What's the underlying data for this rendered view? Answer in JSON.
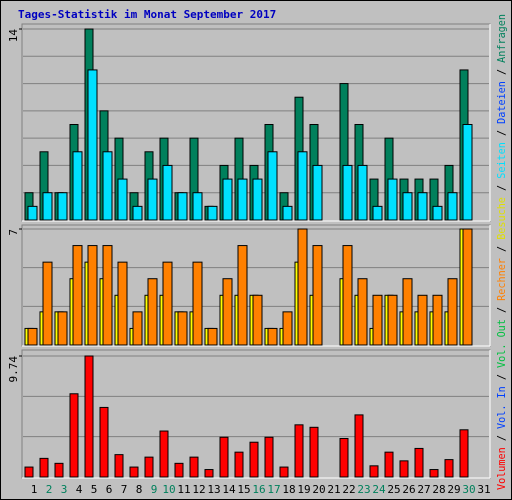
{
  "chart_data": [
    {
      "type": "bar",
      "title": "Tages-Statistik im Monat September 2017",
      "title_color": "#0000c0",
      "ylim": [
        0,
        14
      ],
      "yticks": [
        14
      ],
      "series": [
        {
          "name": "Anfragen",
          "color": "#00805c",
          "values": [
            2,
            5,
            2,
            7,
            14,
            8,
            6,
            2,
            5,
            6,
            2,
            6,
            1,
            4,
            6,
            4,
            7,
            2,
            9,
            7,
            0,
            10,
            7,
            3,
            6,
            3,
            3,
            3,
            4,
            11,
            0
          ]
        },
        {
          "name": "Seiten",
          "color": "#00e0ff",
          "values": [
            1,
            2,
            2,
            5,
            11,
            5,
            3,
            1,
            3,
            4,
            2,
            2,
            1,
            3,
            3,
            3,
            5,
            1,
            5,
            4,
            0,
            4,
            4,
            1,
            3,
            2,
            2,
            1,
            2,
            7,
            0
          ]
        }
      ]
    },
    {
      "type": "bar",
      "ylim": [
        0,
        7
      ],
      "yticks": [
        7
      ],
      "series": [
        {
          "name": "Besuche",
          "color": "#ffff00",
          "values": [
            1,
            2,
            2,
            4,
            5,
            4,
            3,
            1,
            3,
            3,
            2,
            2,
            1,
            3,
            3,
            3,
            1,
            1,
            5,
            3,
            0,
            4,
            3,
            1,
            3,
            2,
            2,
            2,
            2,
            7,
            0
          ]
        },
        {
          "name": "Rechner",
          "color": "#ff8000",
          "values": [
            1,
            5,
            2,
            6,
            6,
            6,
            5,
            2,
            4,
            5,
            2,
            5,
            1,
            4,
            6,
            3,
            1,
            2,
            7,
            6,
            0,
            6,
            4,
            3,
            3,
            4,
            3,
            3,
            4,
            7,
            0
          ]
        }
      ]
    },
    {
      "type": "bar",
      "ylim": [
        0,
        9.74
      ],
      "yticks": [
        9.74
      ],
      "categories": [
        "1",
        "2",
        "3",
        "4",
        "5",
        "6",
        "7",
        "8",
        "9",
        "10",
        "11",
        "12",
        "13",
        "14",
        "15",
        "16",
        "17",
        "18",
        "19",
        "20",
        "21",
        "22",
        "23",
        "24",
        "25",
        "26",
        "27",
        "28",
        "29",
        "30",
        "31"
      ],
      "weekend_indices": [
        1,
        2,
        8,
        9,
        15,
        16,
        22,
        23,
        29
      ],
      "weekend_color": "#00805c",
      "series": [
        {
          "name": "Volumen",
          "color": "#ff0000",
          "values": [
            0.8,
            1.5,
            1.1,
            6.7,
            9.74,
            5.6,
            1.8,
            0.8,
            1.6,
            3.7,
            1.1,
            1.6,
            0.6,
            3.2,
            2.0,
            2.8,
            3.2,
            0.8,
            4.2,
            4.0,
            0,
            3.1,
            5.0,
            0.9,
            2.0,
            1.3,
            2.3,
            0.6,
            1.4,
            3.8,
            0
          ]
        }
      ]
    }
  ],
  "legend_extra": [
    {
      "name": "Vol. In",
      "color": "#0040ff"
    },
    {
      "name": "Vol. Out",
      "color": "#00c040"
    },
    {
      "name": "Dateien",
      "color": "#0040ff"
    }
  ],
  "legend_separator": " / "
}
